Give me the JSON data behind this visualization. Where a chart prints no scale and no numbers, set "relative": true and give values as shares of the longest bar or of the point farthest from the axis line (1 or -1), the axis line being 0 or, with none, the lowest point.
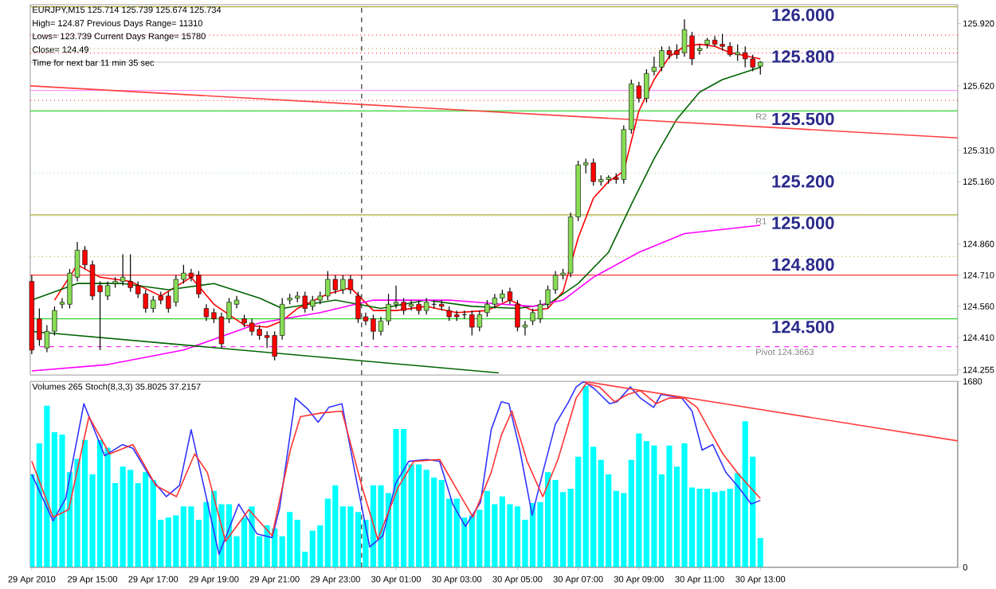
{
  "chart_data": [
    {
      "type": "candlestick",
      "title": "EURJPY,M15 125.714 125.739 125.674 125.734",
      "annotations": [
        "High= 124.87   Previous Days Range= 11310",
        "Lows= 123.739   Current Days Range= 15780",
        "Close= 124.49",
        "Time for next bar 11 min 35 sec",
        {
          "text": "126.000",
          "x": "2010-04-30T13:18",
          "y": 126.0
        },
        {
          "text": "125.800",
          "x": "2010-04-30T13:18",
          "y": 125.8
        },
        {
          "text": "125.500",
          "x": "2010-04-30T13:18",
          "y": 125.5
        },
        {
          "text": "125.200",
          "x": "2010-04-30T13:18",
          "y": 125.2
        },
        {
          "text": "125.000",
          "x": "2010-04-30T13:18",
          "y": 125.0
        },
        {
          "text": "124.800",
          "x": "2010-04-30T13:18",
          "y": 124.8
        },
        {
          "text": "124.500",
          "x": "2010-04-30T13:18",
          "y": 124.5
        }
      ],
      "x": [
        "2010-04-29T13:00",
        "2010-04-29T13:15",
        "2010-04-29T13:30",
        "2010-04-29T13:45",
        "2010-04-29T14:00",
        "2010-04-29T14:15",
        "2010-04-29T14:30",
        "2010-04-29T14:45",
        "2010-04-29T15:00",
        "2010-04-29T15:15",
        "2010-04-29T15:30",
        "2010-04-29T15:45",
        "2010-04-29T16:00",
        "2010-04-29T16:15",
        "2010-04-29T16:30",
        "2010-04-29T16:45",
        "2010-04-29T17:00",
        "2010-04-29T17:15",
        "2010-04-29T17:30",
        "2010-04-29T17:45",
        "2010-04-29T18:00",
        "2010-04-29T18:15",
        "2010-04-29T18:30",
        "2010-04-29T18:45",
        "2010-04-29T19:00",
        "2010-04-29T19:15",
        "2010-04-29T19:30",
        "2010-04-29T19:45",
        "2010-04-29T20:00",
        "2010-04-29T20:15",
        "2010-04-29T20:30",
        "2010-04-29T20:45",
        "2010-04-29T21:00",
        "2010-04-29T21:15",
        "2010-04-29T21:30",
        "2010-04-29T21:45",
        "2010-04-29T22:00",
        "2010-04-29T22:15",
        "2010-04-29T22:30",
        "2010-04-29T22:45",
        "2010-04-29T23:00",
        "2010-04-29T23:15",
        "2010-04-29T23:30",
        "2010-04-29T23:45",
        "2010-04-30T00:00",
        "2010-04-30T00:15",
        "2010-04-30T00:30",
        "2010-04-30T00:45",
        "2010-04-30T01:00",
        "2010-04-30T01:15",
        "2010-04-30T01:30",
        "2010-04-30T01:45",
        "2010-04-30T02:00",
        "2010-04-30T02:15",
        "2010-04-30T02:30",
        "2010-04-30T02:45",
        "2010-04-30T03:00",
        "2010-04-30T03:15",
        "2010-04-30T03:30",
        "2010-04-30T03:45",
        "2010-04-30T04:00",
        "2010-04-30T04:15",
        "2010-04-30T04:30",
        "2010-04-30T04:45",
        "2010-04-30T05:00",
        "2010-04-30T05:15",
        "2010-04-30T05:30",
        "2010-04-30T05:45",
        "2010-04-30T06:00",
        "2010-04-30T06:15",
        "2010-04-30T06:30",
        "2010-04-30T06:45",
        "2010-04-30T07:00",
        "2010-04-30T07:15",
        "2010-04-30T07:30",
        "2010-04-30T07:45",
        "2010-04-30T08:00",
        "2010-04-30T08:15",
        "2010-04-30T08:30",
        "2010-04-30T08:45",
        "2010-04-30T09:00",
        "2010-04-30T09:15",
        "2010-04-30T09:30",
        "2010-04-30T09:45",
        "2010-04-30T10:00",
        "2010-04-30T10:15",
        "2010-04-30T10:30",
        "2010-04-30T10:45",
        "2010-04-30T11:00",
        "2010-04-30T11:15",
        "2010-04-30T11:30",
        "2010-04-30T11:45",
        "2010-04-30T12:00",
        "2010-04-30T12:15",
        "2010-04-30T12:30",
        "2010-04-30T12:45",
        "2010-04-30T13:00"
      ],
      "ohlc": [
        [
          124.68,
          124.71,
          124.33,
          124.35
        ],
        [
          124.5,
          124.55,
          124.37,
          124.4
        ],
        [
          124.36,
          124.47,
          124.34,
          124.44
        ],
        [
          124.44,
          124.56,
          124.42,
          124.54
        ],
        [
          124.57,
          124.6,
          124.55,
          124.58
        ],
        [
          124.57,
          124.74,
          124.55,
          124.72
        ],
        [
          124.7,
          124.87,
          124.68,
          124.83
        ],
        [
          124.83,
          124.85,
          124.74,
          124.76
        ],
        [
          124.76,
          124.78,
          124.59,
          124.61
        ],
        [
          124.66,
          124.68,
          124.35,
          124.63
        ],
        [
          124.61,
          124.68,
          124.59,
          124.66
        ],
        [
          124.67,
          124.7,
          124.65,
          124.68
        ],
        [
          124.68,
          124.81,
          124.66,
          124.7
        ],
        [
          124.68,
          124.81,
          124.63,
          124.65
        ],
        [
          124.66,
          124.68,
          124.6,
          124.62
        ],
        [
          124.62,
          124.64,
          124.53,
          124.55
        ],
        [
          124.55,
          124.61,
          124.53,
          124.59
        ],
        [
          124.61,
          124.63,
          124.57,
          124.59
        ],
        [
          124.61,
          124.63,
          124.53,
          124.55
        ],
        [
          124.58,
          124.71,
          124.56,
          124.69
        ],
        [
          124.69,
          124.76,
          124.67,
          124.72
        ],
        [
          124.72,
          124.74,
          124.68,
          124.7
        ],
        [
          124.71,
          124.73,
          124.6,
          124.62
        ],
        [
          124.55,
          124.57,
          124.49,
          124.51
        ],
        [
          124.53,
          124.55,
          124.48,
          124.5
        ],
        [
          124.51,
          124.53,
          124.36,
          124.38
        ],
        [
          124.5,
          124.6,
          124.48,
          124.58
        ],
        [
          124.57,
          124.61,
          124.55,
          124.59
        ],
        [
          124.5,
          124.52,
          124.46,
          124.48
        ],
        [
          124.48,
          124.5,
          124.42,
          124.44
        ],
        [
          124.45,
          124.47,
          124.4,
          124.42
        ],
        [
          124.42,
          124.44,
          124.36,
          124.41
        ],
        [
          124.42,
          124.44,
          124.3,
          124.32
        ],
        [
          124.42,
          124.6,
          124.4,
          124.57
        ],
        [
          124.59,
          124.62,
          124.57,
          124.6
        ],
        [
          124.6,
          124.63,
          124.58,
          124.61
        ],
        [
          124.61,
          124.63,
          124.53,
          124.55
        ],
        [
          124.56,
          124.61,
          124.54,
          124.59
        ],
        [
          124.59,
          124.63,
          124.57,
          124.61
        ],
        [
          124.61,
          124.73,
          124.59,
          124.69
        ],
        [
          124.69,
          124.71,
          124.62,
          124.64
        ],
        [
          124.64,
          124.71,
          124.62,
          124.69
        ],
        [
          124.69,
          124.71,
          124.62,
          124.64
        ],
        [
          124.61,
          124.63,
          124.48,
          124.5
        ],
        [
          124.51,
          124.53,
          124.47,
          124.49
        ],
        [
          124.5,
          124.52,
          124.4,
          124.44
        ],
        [
          124.44,
          124.51,
          124.42,
          124.49
        ],
        [
          124.49,
          124.62,
          124.47,
          124.57
        ],
        [
          124.57,
          124.66,
          124.55,
          124.58
        ],
        [
          124.58,
          124.6,
          124.52,
          124.54
        ],
        [
          124.56,
          124.59,
          124.54,
          124.57
        ],
        [
          124.57,
          124.59,
          124.52,
          124.54
        ],
        [
          124.54,
          124.6,
          124.52,
          124.58
        ],
        [
          124.57,
          124.59,
          124.55,
          124.57
        ],
        [
          124.57,
          124.59,
          124.54,
          124.56
        ],
        [
          124.54,
          124.56,
          124.49,
          124.51
        ],
        [
          124.52,
          124.54,
          124.49,
          124.51
        ],
        [
          124.52,
          124.54,
          124.5,
          124.52
        ],
        [
          124.52,
          124.54,
          124.42,
          124.46
        ],
        [
          124.46,
          124.54,
          124.44,
          124.52
        ],
        [
          124.53,
          124.59,
          124.51,
          124.57
        ],
        [
          124.57,
          124.62,
          124.55,
          124.6
        ],
        [
          124.6,
          124.64,
          124.58,
          124.62
        ],
        [
          124.63,
          124.65,
          124.57,
          124.59
        ],
        [
          124.57,
          124.59,
          124.44,
          124.46
        ],
        [
          124.46,
          124.49,
          124.42,
          124.47
        ],
        [
          124.49,
          124.55,
          124.47,
          124.53
        ],
        [
          124.5,
          124.59,
          124.48,
          124.57
        ],
        [
          124.57,
          124.66,
          124.55,
          124.64
        ],
        [
          124.64,
          124.73,
          124.62,
          124.71
        ],
        [
          124.71,
          124.74,
          124.69,
          124.72
        ],
        [
          124.72,
          125.01,
          124.7,
          124.99
        ],
        [
          124.99,
          125.26,
          124.97,
          125.24
        ],
        [
          125.24,
          125.27,
          125.2,
          125.25
        ],
        [
          125.25,
          125.27,
          125.14,
          125.16
        ],
        [
          125.16,
          125.19,
          125.14,
          125.17
        ],
        [
          125.17,
          125.19,
          125.15,
          125.18
        ],
        [
          125.18,
          125.2,
          125.15,
          125.17
        ],
        [
          125.17,
          125.43,
          125.15,
          125.41
        ],
        [
          125.41,
          125.65,
          125.39,
          125.63
        ],
        [
          125.62,
          125.64,
          125.54,
          125.56
        ],
        [
          125.56,
          125.7,
          125.54,
          125.68
        ],
        [
          125.69,
          125.76,
          125.67,
          125.71
        ],
        [
          125.71,
          125.81,
          125.69,
          125.79
        ],
        [
          125.79,
          125.81,
          125.75,
          125.77
        ],
        [
          125.79,
          125.82,
          125.75,
          125.77
        ],
        [
          125.78,
          125.94,
          125.76,
          125.89
        ],
        [
          125.86,
          125.88,
          125.72,
          125.75
        ],
        [
          125.79,
          125.82,
          125.77,
          125.8
        ],
        [
          125.82,
          125.85,
          125.8,
          125.84
        ],
        [
          125.84,
          125.86,
          125.81,
          125.82
        ],
        [
          125.82,
          125.87,
          125.79,
          125.81
        ],
        [
          125.81,
          125.83,
          125.76,
          125.77
        ],
        [
          125.77,
          125.82,
          125.74,
          125.78
        ],
        [
          125.78,
          125.81,
          125.71,
          125.75
        ],
        [
          125.75,
          125.77,
          125.69,
          125.71
        ],
        [
          125.714,
          125.739,
          125.674,
          125.734
        ]
      ],
      "series": [
        {
          "type": "line",
          "color": "#ff0000",
          "x": [
            "2010-04-29T13:45",
            "2010-04-29T14:30",
            "2010-04-29T15:15",
            "2010-04-29T16:15",
            "2010-04-29T17:15",
            "2010-04-29T18:15",
            "2010-04-29T19:00",
            "2010-04-29T20:00",
            "2010-04-29T20:45",
            "2010-04-29T21:15",
            "2010-04-29T21:45",
            "2010-04-29T22:45",
            "2010-04-29T23:30",
            "2010-04-30T00:15",
            "2010-04-30T01:00",
            "2010-04-30T02:00",
            "2010-04-30T03:00",
            "2010-04-30T04:00",
            "2010-04-30T04:45",
            "2010-04-30T05:30",
            "2010-04-30T06:00",
            "2010-04-30T06:30",
            "2010-04-30T07:00",
            "2010-04-30T07:30",
            "2010-04-30T08:00",
            "2010-04-30T08:30",
            "2010-04-30T09:00",
            "2010-04-30T09:30",
            "2010-04-30T10:00",
            "2010-04-30T10:30",
            "2010-04-30T11:00",
            "2010-04-30T11:30",
            "2010-04-30T12:00",
            "2010-04-30T13:00"
          ],
          "values": [
            124.59,
            124.76,
            124.7,
            124.68,
            124.61,
            124.7,
            124.57,
            124.47,
            124.46,
            124.49,
            124.55,
            124.62,
            124.65,
            124.54,
            124.54,
            124.56,
            124.53,
            124.54,
            124.59,
            124.54,
            124.55,
            124.63,
            124.89,
            125.08,
            125.16,
            125.21,
            125.5,
            125.65,
            125.76,
            125.81,
            125.82,
            125.81,
            125.78,
            125.75
          ]
        },
        {
          "type": "line",
          "color": "#006400",
          "x": [
            "2010-04-29T13:00",
            "2010-04-29T14:30",
            "2010-04-29T16:00",
            "2010-04-29T17:30",
            "2010-04-29T19:00",
            "2010-04-29T20:30",
            "2010-04-29T21:15",
            "2010-04-29T23:00",
            "2010-04-30T00:30",
            "2010-04-30T02:00",
            "2010-04-30T03:30",
            "2010-04-30T05:00",
            "2010-04-30T06:00",
            "2010-04-30T07:00",
            "2010-04-30T08:00",
            "2010-04-30T08:45",
            "2010-04-30T09:30",
            "2010-04-30T10:15",
            "2010-04-30T11:00",
            "2010-04-30T11:45",
            "2010-04-30T13:00"
          ],
          "values": [
            124.59,
            124.67,
            124.67,
            124.64,
            124.67,
            124.6,
            124.55,
            124.59,
            124.55,
            124.59,
            124.56,
            124.55,
            124.57,
            124.67,
            124.82,
            125.05,
            125.27,
            125.46,
            125.59,
            125.65,
            125.71
          ]
        },
        {
          "type": "line",
          "color": "#ff00ff",
          "x": [
            "2010-04-29T13:00",
            "2010-04-29T15:30",
            "2010-04-29T18:00",
            "2010-04-29T20:30",
            "2010-04-29T22:30",
            "2010-04-30T00:15",
            "2010-04-30T02:45",
            "2010-04-30T04:30",
            "2010-04-30T05:30",
            "2010-04-30T06:30",
            "2010-04-30T07:30",
            "2010-04-30T09:00",
            "2010-04-30T10:30",
            "2010-04-30T13:00"
          ],
          "values": [
            124.25,
            124.28,
            124.35,
            124.48,
            124.53,
            124.59,
            124.59,
            124.57,
            124.56,
            124.59,
            124.7,
            124.82,
            124.91,
            124.95
          ]
        },
        {
          "type": "line",
          "color": "#ff4040",
          "x": [
            "2010-04-29T12:57",
            "2010-04-30T19:30"
          ],
          "values": [
            125.62,
            125.37
          ]
        },
        {
          "type": "line",
          "color": "#006400",
          "x": [
            "2010-04-29T12:57",
            "2010-04-30T04:23"
          ],
          "values": [
            124.44,
            124.24
          ]
        }
      ],
      "ref_lines": [
        {
          "axis": "y",
          "value": 126.0,
          "color": "#999900"
        },
        {
          "axis": "y",
          "value": 125.864,
          "color": "#ff0000",
          "line_style": "dotted"
        },
        {
          "axis": "y",
          "value": 125.8,
          "color": "#999900",
          "line_style": "dotted"
        },
        {
          "axis": "y",
          "value": 125.778,
          "color": "#ff0000",
          "line_style": "dotted"
        },
        {
          "axis": "y",
          "value": 125.734,
          "color": "#c0c0c0"
        },
        {
          "axis": "y",
          "value": 125.598,
          "color": "#ff80ff"
        },
        {
          "axis": "y",
          "value": 125.55,
          "color": "#ff0000",
          "line_style": "dotted"
        },
        {
          "axis": "y",
          "value": 125.5,
          "color": "#00cc00"
        },
        {
          "axis": "y",
          "value": 125.497,
          "color": "#80e080",
          "line_style": "dotted",
          "label": "R2"
        },
        {
          "axis": "y",
          "value": 125.2,
          "color": "#80e080",
          "line_style": "dotted"
        },
        {
          "axis": "y",
          "value": 125.0,
          "color": "#999900"
        },
        {
          "axis": "y",
          "value": 124.994,
          "color": "#80e080",
          "line_style": "dotted",
          "label": "R1"
        },
        {
          "axis": "y",
          "value": 124.8,
          "color": "#999900",
          "line_style": "dotted"
        },
        {
          "axis": "y",
          "value": 124.71,
          "color": "#ff0000"
        },
        {
          "axis": "y",
          "value": 124.5,
          "color": "#00cc00"
        },
        {
          "axis": "y",
          "value": 124.366,
          "color": "#ff00ff",
          "line_style": "dashed",
          "label": "Pivot 124.3663"
        },
        {
          "axis": "x",
          "value": "2010-04-29T23:52",
          "color": "#000000",
          "line_style": "dashed"
        }
      ],
      "xlim": [
        "2010-04-29T12:57",
        "2010-04-30T19:30"
      ],
      "ylim": [
        124.23,
        126.01
      ],
      "yticks": [
        {
          "value": 125.92,
          "label": "125.920"
        },
        {
          "value": 125.62,
          "label": "125.620"
        },
        {
          "value": 125.31,
          "label": "125.310"
        },
        {
          "value": 125.16,
          "label": "125.160"
        },
        {
          "value": 124.86,
          "label": "124.860"
        },
        {
          "value": 124.71,
          "label": "124.710"
        },
        {
          "value": 124.56,
          "label": "124.560"
        },
        {
          "value": 124.41,
          "label": "124.410"
        },
        {
          "value": 124.255,
          "label": "124.255"
        }
      ],
      "tick_labels": "y"
    },
    {
      "type": "bar",
      "title": "Volumes 265 Stoch(8,3,3) 35.8025 37.2157",
      "x": [
        "2010-04-29T13:00",
        "2010-04-29T13:15",
        "2010-04-29T13:30",
        "2010-04-29T13:45",
        "2010-04-29T14:00",
        "2010-04-29T14:15",
        "2010-04-29T14:30",
        "2010-04-29T14:45",
        "2010-04-29T15:00",
        "2010-04-29T15:15",
        "2010-04-29T15:30",
        "2010-04-29T15:45",
        "2010-04-29T16:00",
        "2010-04-29T16:15",
        "2010-04-29T16:30",
        "2010-04-29T16:45",
        "2010-04-29T17:00",
        "2010-04-29T17:15",
        "2010-04-29T17:30",
        "2010-04-29T17:45",
        "2010-04-29T18:00",
        "2010-04-29T18:15",
        "2010-04-29T18:30",
        "2010-04-29T18:45",
        "2010-04-29T19:00",
        "2010-04-29T19:15",
        "2010-04-29T19:30",
        "2010-04-29T19:45",
        "2010-04-29T20:00",
        "2010-04-29T20:15",
        "2010-04-29T20:30",
        "2010-04-29T20:45",
        "2010-04-29T21:00",
        "2010-04-29T21:15",
        "2010-04-29T21:30",
        "2010-04-29T21:45",
        "2010-04-29T22:00",
        "2010-04-29T22:15",
        "2010-04-29T22:30",
        "2010-04-29T22:45",
        "2010-04-29T23:00",
        "2010-04-29T23:15",
        "2010-04-29T23:30",
        "2010-04-29T23:45",
        "2010-04-30T00:00",
        "2010-04-30T00:15",
        "2010-04-30T00:30",
        "2010-04-30T00:45",
        "2010-04-30T01:00",
        "2010-04-30T01:15",
        "2010-04-30T01:30",
        "2010-04-30T01:45",
        "2010-04-30T02:00",
        "2010-04-30T02:15",
        "2010-04-30T02:30",
        "2010-04-30T02:45",
        "2010-04-30T03:00",
        "2010-04-30T03:15",
        "2010-04-30T03:30",
        "2010-04-30T03:45",
        "2010-04-30T04:00",
        "2010-04-30T04:15",
        "2010-04-30T04:30",
        "2010-04-30T04:45",
        "2010-04-30T05:00",
        "2010-04-30T05:15",
        "2010-04-30T05:30",
        "2010-04-30T05:45",
        "2010-04-30T06:00",
        "2010-04-30T06:15",
        "2010-04-30T06:30",
        "2010-04-30T06:45",
        "2010-04-30T07:00",
        "2010-04-30T07:15",
        "2010-04-30T07:30",
        "2010-04-30T07:45",
        "2010-04-30T08:00",
        "2010-04-30T08:15",
        "2010-04-30T08:30",
        "2010-04-30T08:45",
        "2010-04-30T09:00",
        "2010-04-30T09:15",
        "2010-04-30T09:30",
        "2010-04-30T09:45",
        "2010-04-30T10:00",
        "2010-04-30T10:15",
        "2010-04-30T10:30",
        "2010-04-30T10:45",
        "2010-04-30T11:00",
        "2010-04-30T11:15",
        "2010-04-30T11:30",
        "2010-04-30T11:45",
        "2010-04-30T12:00",
        "2010-04-30T12:15",
        "2010-04-30T12:30",
        "2010-04-30T12:45",
        "2010-04-30T13:00"
      ],
      "series": [
        {
          "type": "bar",
          "color": "#00ffff",
          "values": [
            840,
            1120,
            1460,
            1220,
            1200,
            860,
            980,
            1150,
            840,
            1150,
            1080,
            760,
            910,
            880,
            760,
            860,
            790,
            430,
            450,
            470,
            550,
            550,
            430,
            590,
            690,
            570,
            570,
            280,
            450,
            550,
            280,
            380,
            350,
            280,
            500,
            430,
            140,
            330,
            380,
            620,
            740,
            550,
            550,
            500,
            430,
            740,
            740,
            670,
            1250,
            1250,
            930,
            930,
            880,
            810,
            790,
            620,
            620,
            450,
            470,
            520,
            690,
            570,
            640,
            570,
            550,
            430,
            580,
            590,
            860,
            790,
            680,
            710,
            1000,
            1640,
            1090,
            970,
            840,
            690,
            670,
            970,
            1210,
            1140,
            1100,
            840,
            1100,
            910,
            1120,
            720,
            710,
            710,
            680,
            690,
            710,
            850,
            1320,
            1000,
            265
          ]
        }
      ],
      "ref_lines": [
        {
          "axis": "x",
          "value": "2010-04-29T23:52",
          "color": "#000000",
          "line_style": "dashed"
        }
      ],
      "xlim": [
        "2010-04-29T12:57",
        "2010-04-30T19:30"
      ],
      "ylim": [
        0,
        1680
      ],
      "xticks": [
        {
          "value": "2010-04-29T13:00",
          "label": "29 Apr 2010"
        },
        {
          "value": "2010-04-29T15:00",
          "label": "29 Apr 15:00"
        },
        {
          "value": "2010-04-29T17:00",
          "label": "29 Apr 17:00"
        },
        {
          "value": "2010-04-29T19:00",
          "label": "29 Apr 19:00"
        },
        {
          "value": "2010-04-29T21:00",
          "label": "29 Apr 21:00"
        },
        {
          "value": "2010-04-29T23:00",
          "label": "29 Apr 23:00"
        },
        {
          "value": "2010-04-30T01:00",
          "label": "30 Apr 01:00"
        },
        {
          "value": "2010-04-30T03:00",
          "label": "30 Apr 03:00"
        },
        {
          "value": "2010-04-30T05:00",
          "label": "30 Apr 05:00"
        },
        {
          "value": "2010-04-30T07:00",
          "label": "30 Apr 07:00"
        },
        {
          "value": "2010-04-30T09:00",
          "label": "30 Apr 09:00"
        },
        {
          "value": "2010-04-30T11:00",
          "label": "30 Apr 11:00"
        },
        {
          "value": "2010-04-30T13:00",
          "label": "30 Apr 13:00"
        }
      ],
      "yticks": [
        0,
        1680
      ]
    },
    {
      "type": "line",
      "relative": true,
      "xlim": [
        "2010-04-29T12:57",
        "2010-04-30T19:30"
      ],
      "tick_labels": false,
      "series": [
        {
          "color": "#3333ff",
          "x": [
            "2010-04-29T13:00",
            "2010-04-29T13:42",
            "2010-04-29T14:07",
            "2010-04-29T14:43",
            "2010-04-29T15:24",
            "2010-04-29T15:59",
            "2010-04-29T16:20",
            "2010-04-29T16:55",
            "2010-04-29T17:26",
            "2010-04-29T17:52",
            "2010-04-29T18:15",
            "2010-04-29T18:43",
            "2010-04-29T19:10",
            "2010-04-29T19:49",
            "2010-04-29T20:25",
            "2010-04-29T20:55",
            "2010-04-29T21:10",
            "2010-04-29T21:41",
            "2010-04-29T22:06",
            "2010-04-29T22:26",
            "2010-04-29T22:47",
            "2010-04-29T23:13",
            "2010-04-29T23:43",
            "2010-04-30T00:08",
            "2010-04-30T00:34",
            "2010-04-30T00:59",
            "2010-04-30T01:25",
            "2010-04-30T02:01",
            "2010-04-30T02:26",
            "2010-04-30T02:52",
            "2010-04-30T03:17",
            "2010-04-30T03:47",
            "2010-04-30T04:08",
            "2010-04-30T04:28",
            "2010-04-30T04:43",
            "2010-04-30T05:04",
            "2010-04-30T05:29",
            "2010-04-30T05:50",
            "2010-04-30T06:15",
            "2010-04-30T06:41",
            "2010-04-30T06:56",
            "2010-04-30T07:11",
            "2010-04-30T07:32",
            "2010-04-30T08:02",
            "2010-04-30T08:17",
            "2010-04-30T08:43",
            "2010-04-30T09:03",
            "2010-04-30T09:29",
            "2010-04-30T09:44",
            "2010-04-30T10:25",
            "2010-04-30T10:45",
            "2010-04-30T11:05",
            "2010-04-30T11:26",
            "2010-04-30T11:52",
            "2010-04-30T12:17",
            "2010-04-30T12:42",
            "2010-04-30T13:00"
          ],
          "values": [
            0.5,
            0.25,
            0.37,
            0.88,
            0.6,
            0.66,
            0.64,
            0.48,
            0.38,
            0.44,
            0.74,
            0.4,
            0.07,
            0.34,
            0.18,
            0.16,
            0.32,
            0.91,
            0.85,
            0.78,
            0.86,
            0.88,
            0.45,
            0.11,
            0.17,
            0.45,
            0.57,
            0.58,
            0.57,
            0.34,
            0.22,
            0.35,
            0.74,
            0.89,
            0.88,
            0.64,
            0.28,
            0.51,
            0.77,
            0.89,
            0.97,
            1,
            0.96,
            0.88,
            0.89,
            0.97,
            0.91,
            0.86,
            0.93,
            0.91,
            0.84,
            0.63,
            0.66,
            0.51,
            0.43,
            0.34,
            0.36
          ]
        },
        {
          "color": "#ff3333",
          "x": [
            "2010-04-29T13:00",
            "2010-04-29T13:42",
            "2010-04-29T14:13",
            "2010-04-29T14:53",
            "2010-04-29T15:34",
            "2010-04-29T16:20",
            "2010-04-29T17:05",
            "2010-04-29T17:46",
            "2010-04-29T18:22",
            "2010-04-29T18:47",
            "2010-04-29T19:23",
            "2010-04-29T20:09",
            "2010-04-29T20:55",
            "2010-04-29T21:31",
            "2010-04-29T21:51",
            "2010-04-29T22:32",
            "2010-04-29T23:13",
            "2010-04-29T23:53",
            "2010-04-30T00:24",
            "2010-04-30T01:04",
            "2010-04-30T01:35",
            "2010-04-30T02:26",
            "2010-04-30T03:02",
            "2010-04-30T03:32",
            "2010-04-30T04:08",
            "2010-04-30T04:28",
            "2010-04-30T04:49",
            "2010-04-30T05:19",
            "2010-04-30T05:50",
            "2010-04-30T06:20",
            "2010-04-30T06:56",
            "2010-04-30T07:16",
            "2010-04-30T07:42",
            "2010-04-30T08:12",
            "2010-04-30T08:38",
            "2010-04-30T09:03",
            "2010-04-30T09:34",
            "2010-04-30T09:59",
            "2010-04-30T10:30",
            "2010-04-30T10:55",
            "2010-04-30T11:21",
            "2010-04-30T11:46",
            "2010-04-30T12:17",
            "2010-04-30T13:00"
          ],
          "values": [
            0.57,
            0.27,
            0.31,
            0.81,
            0.61,
            0.66,
            0.44,
            0.38,
            0.61,
            0.51,
            0.14,
            0.31,
            0.17,
            0.63,
            0.81,
            0.83,
            0.84,
            0.43,
            0.15,
            0.43,
            0.57,
            0.58,
            0.41,
            0.27,
            0.51,
            0.71,
            0.84,
            0.57,
            0.38,
            0.58,
            0.91,
            0.99,
            0.97,
            0.89,
            0.93,
            0.95,
            0.88,
            0.91,
            0.91,
            0.86,
            0.73,
            0.61,
            0.5,
            0.37
          ]
        },
        {
          "color": "#ff4040",
          "x": [
            "2010-04-30T07:11",
            "2010-04-30T19:30"
          ],
          "values": [
            1,
            0.68
          ]
        }
      ]
    }
  ]
}
